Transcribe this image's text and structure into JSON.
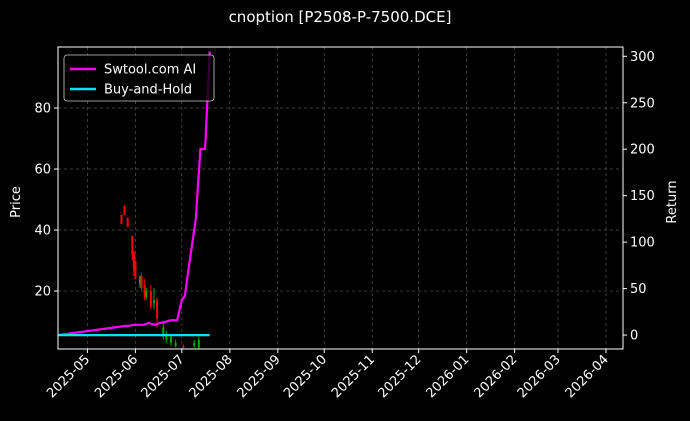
{
  "chart_data": {
    "type": "line",
    "title": "cnoption [P2508-P-7500.DCE]",
    "xlabel": "",
    "ylabel": "Price",
    "y2label": "Return",
    "x_ticks": [
      "2025-05",
      "2025-06",
      "2025-07",
      "2025-08",
      "2025-09",
      "2025-10",
      "2025-11",
      "2025-12",
      "2026-01",
      "2026-02",
      "2026-03",
      "2026-04"
    ],
    "xlim": [
      "2025-04-12",
      "2026-04-12"
    ],
    "ylim": [
      1,
      100
    ],
    "y_ticks": [
      20,
      40,
      60,
      80
    ],
    "y2lim": [
      -15,
      310
    ],
    "y2_ticks": [
      0,
      50,
      100,
      150,
      200,
      250,
      300
    ],
    "grid": true,
    "legend_position": "top-left",
    "colors": {
      "background": "#000000",
      "axes": "#ffffff",
      "grid": "#555555",
      "up": "#00aa00",
      "down": "#ff0000",
      "strategy": "#ff00ff",
      "benchmark": "#00e5ee"
    },
    "series": [
      {
        "name": "Swtool.com AI",
        "axis": "right",
        "color": "#ff00ff",
        "points": [
          [
            "2025-04-12",
            0
          ],
          [
            "2025-05-26",
            10
          ],
          [
            "2025-05-28",
            10
          ],
          [
            "2025-05-31",
            11
          ],
          [
            "2025-06-03",
            11
          ],
          [
            "2025-06-06",
            11
          ],
          [
            "2025-06-10",
            13
          ],
          [
            "2025-06-13",
            11
          ],
          [
            "2025-06-17",
            13
          ],
          [
            "2025-06-20",
            14
          ],
          [
            "2025-06-24",
            16
          ],
          [
            "2025-06-28",
            16
          ],
          [
            "2025-07-01",
            38
          ],
          [
            "2025-07-03",
            42
          ],
          [
            "2025-07-05",
            67
          ],
          [
            "2025-07-07",
            90
          ],
          [
            "2025-07-10",
            125
          ],
          [
            "2025-07-13",
            200
          ],
          [
            "2025-07-16",
            200
          ],
          [
            "2025-07-18",
            270
          ],
          [
            "2025-07-19",
            305
          ]
        ]
      },
      {
        "name": "Buy-and-Hold",
        "axis": "right",
        "color": "#00e5ee",
        "points": [
          [
            "2025-04-12",
            0
          ],
          [
            "2025-07-19",
            0
          ]
        ]
      }
    ],
    "candles": [
      {
        "date": "2025-05-23",
        "open": 45,
        "close": 42,
        "high": 45,
        "low": 42
      },
      {
        "date": "2025-05-25",
        "open": 48,
        "close": 45,
        "high": 48,
        "low": 45
      },
      {
        "date": "2025-05-27",
        "open": 44,
        "close": 41,
        "high": 44,
        "low": 41
      },
      {
        "date": "2025-05-30",
        "open": 38,
        "close": 32,
        "high": 38,
        "low": 30
      },
      {
        "date": "2025-05-31",
        "open": 33,
        "close": 27,
        "high": 33,
        "low": 25
      },
      {
        "date": "2025-06-01",
        "open": 30,
        "close": 24,
        "high": 30,
        "low": 24
      },
      {
        "date": "2025-06-04",
        "open": 22,
        "close": 25,
        "high": 25,
        "low": 21
      },
      {
        "date": "2025-06-05",
        "open": 25,
        "close": 21,
        "high": 26,
        "low": 20
      },
      {
        "date": "2025-06-07",
        "open": 22,
        "close": 18,
        "high": 24,
        "low": 17
      },
      {
        "date": "2025-06-08",
        "open": 18,
        "close": 20,
        "high": 21,
        "low": 17
      },
      {
        "date": "2025-06-11",
        "open": 20,
        "close": 15,
        "high": 22,
        "low": 14
      },
      {
        "date": "2025-06-13",
        "open": 16,
        "close": 17,
        "high": 21,
        "low": 14
      },
      {
        "date": "2025-06-15",
        "open": 17,
        "close": 11,
        "high": 18,
        "low": 8
      },
      {
        "date": "2025-06-19",
        "open": 5,
        "close": 8,
        "high": 10,
        "low": 4
      },
      {
        "date": "2025-06-21",
        "open": 4,
        "close": 6,
        "high": 7,
        "low": 3
      },
      {
        "date": "2025-06-24",
        "open": 3,
        "close": 5,
        "high": 6,
        "low": 2
      },
      {
        "date": "2025-06-27",
        "open": 2,
        "close": 3,
        "high": 4,
        "low": 1.5
      },
      {
        "date": "2025-07-02",
        "open": 2,
        "close": 1.5,
        "high": 2.5,
        "low": 1
      },
      {
        "date": "2025-07-09",
        "open": 2,
        "close": 3,
        "high": 4,
        "low": 1.5
      },
      {
        "date": "2025-07-12",
        "open": 1.5,
        "close": 4,
        "high": 5,
        "low": 1
      }
    ]
  }
}
